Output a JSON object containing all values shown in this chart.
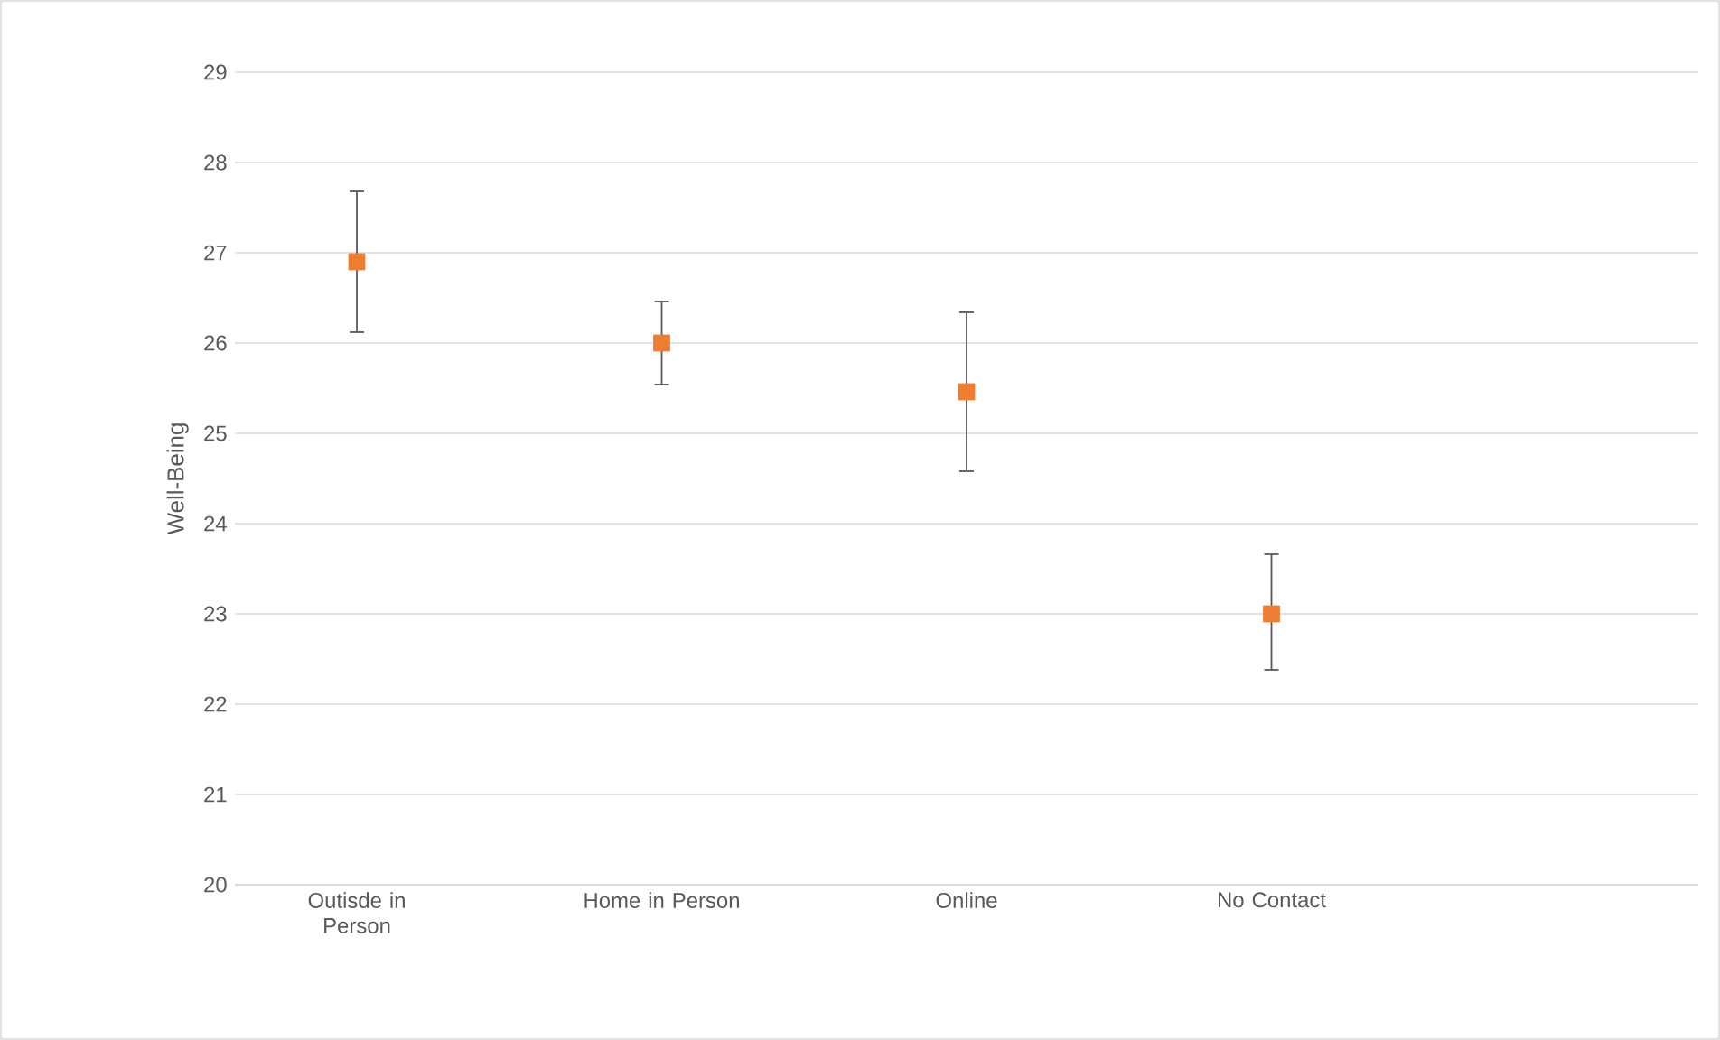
{
  "chart_data": {
    "type": "scatter",
    "ylabel": "Well-Being",
    "categories": [
      "Outisde in Person",
      "Home in Person",
      "Online",
      "No Contact",
      null
    ],
    "series": [
      {
        "color": "#ed7d31",
        "values": [
          26.9,
          26.0,
          25.46,
          23.0,
          null
        ],
        "errors": [
          [
            26.12,
            27.68
          ],
          [
            25.54,
            26.46
          ],
          [
            24.58,
            26.34
          ],
          [
            22.38,
            23.66
          ],
          null
        ]
      }
    ],
    "ylim": [
      20,
      29
    ],
    "yticks": [
      20,
      21,
      22,
      23,
      24,
      25,
      26,
      27,
      28,
      29
    ],
    "grid": "y",
    "marker": "square"
  }
}
